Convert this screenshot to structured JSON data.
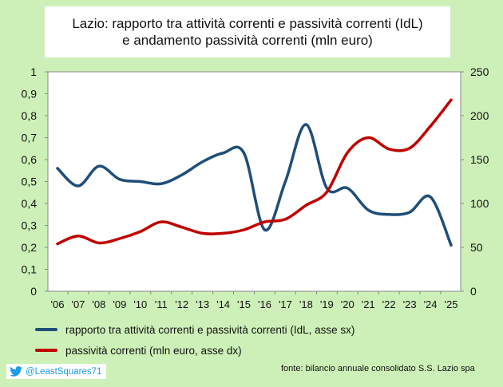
{
  "title": {
    "line1": "Lazio: rapporto tra attività correnti e passività correnti (IdL)",
    "line2": "e andamento passività correnti (mln euro)"
  },
  "legend": {
    "items": [
      {
        "label": "rapporto tra attività correnti e passività correnti (IdL, asse sx)",
        "color": "#1f4e79"
      },
      {
        "label": "passività correnti (mln euro, asse dx)",
        "color": "#c00000"
      }
    ]
  },
  "source": "fonte: bilancio annuale consolidato S.S. Lazio spa",
  "twitter": {
    "handle": "@LeastSquares71",
    "icon": "twitter-bird-icon"
  },
  "chart_data": {
    "type": "line",
    "title": "Lazio: rapporto tra attività correnti e passività correnti (IdL) e andamento passività correnti (mln euro)",
    "categories": [
      "'06",
      "'07",
      "'08",
      "'09",
      "'10",
      "'11",
      "'12",
      "'13",
      "'14",
      "'15",
      "'16",
      "'17",
      "'18",
      "'19",
      "'20",
      "'21",
      "'22",
      "'23",
      "'24",
      "'25"
    ],
    "yleft": {
      "ylim": [
        0,
        1
      ],
      "ticks": [
        "0",
        "0,1",
        "0,2",
        "0,3",
        "0,4",
        "0,5",
        "0,6",
        "0,7",
        "0,8",
        "0,9",
        "1"
      ]
    },
    "yright": {
      "ylim": [
        0,
        250
      ],
      "ticks": [
        "0",
        "50",
        "100",
        "150",
        "200",
        "250"
      ]
    },
    "grid": false,
    "legend_position": "bottom",
    "series": [
      {
        "name": "rapporto tra attività correnti e passività correnti (IdL, asse sx)",
        "axis": "left",
        "color": "#1f4e79",
        "values": [
          0.56,
          0.48,
          0.57,
          0.51,
          0.5,
          0.49,
          0.53,
          0.59,
          0.63,
          0.63,
          0.28,
          0.5,
          0.76,
          0.47,
          0.47,
          0.37,
          0.35,
          0.36,
          0.43,
          0.21
        ]
      },
      {
        "name": "passività correnti (mln euro, asse dx)",
        "axis": "right",
        "color": "#c00000",
        "values": [
          54,
          63,
          55,
          60,
          68,
          79,
          73,
          66,
          66,
          70,
          79,
          82,
          98,
          113,
          158,
          175,
          162,
          163,
          188,
          218
        ]
      }
    ]
  }
}
